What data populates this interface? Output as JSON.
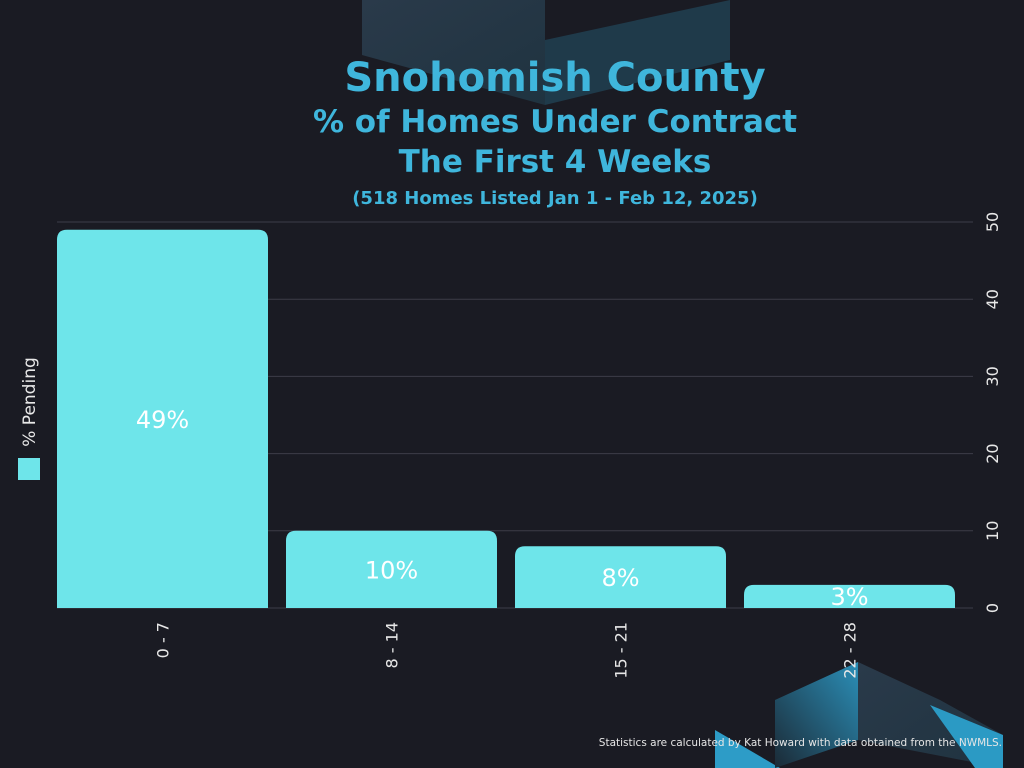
{
  "colors": {
    "background": "#1a1b23",
    "title": "#3fb6dc",
    "bar": "#6ee5ea",
    "grid": "#3c3d48",
    "text": "#e8e8e8"
  },
  "header": {
    "title": "Snohomish County",
    "subtitle1": "% of Homes Under Contract",
    "subtitle2": "The First 4 Weeks",
    "subtitle3": "(518 Homes Listed Jan 1 - Feb 12, 2025)"
  },
  "legend": {
    "label": "% Pending"
  },
  "footnote": "Statistics are calculated by Kat Howard with data obtained from the NWMLS.",
  "chart_data": {
    "type": "bar",
    "categories": [
      "0 - 7",
      "8 - 14",
      "15 - 21",
      "22 - 28"
    ],
    "values": [
      49,
      10,
      8,
      3
    ],
    "data_labels": [
      "49%",
      "10%",
      "8%",
      "3%"
    ],
    "series": [
      {
        "name": "% Pending",
        "values": [
          49,
          10,
          8,
          3
        ]
      }
    ],
    "ylim": [
      0,
      50
    ],
    "yticks": [
      0,
      10,
      20,
      30,
      40,
      50
    ],
    "y_axis_side": "right",
    "grid": true,
    "legend_position": "left"
  }
}
